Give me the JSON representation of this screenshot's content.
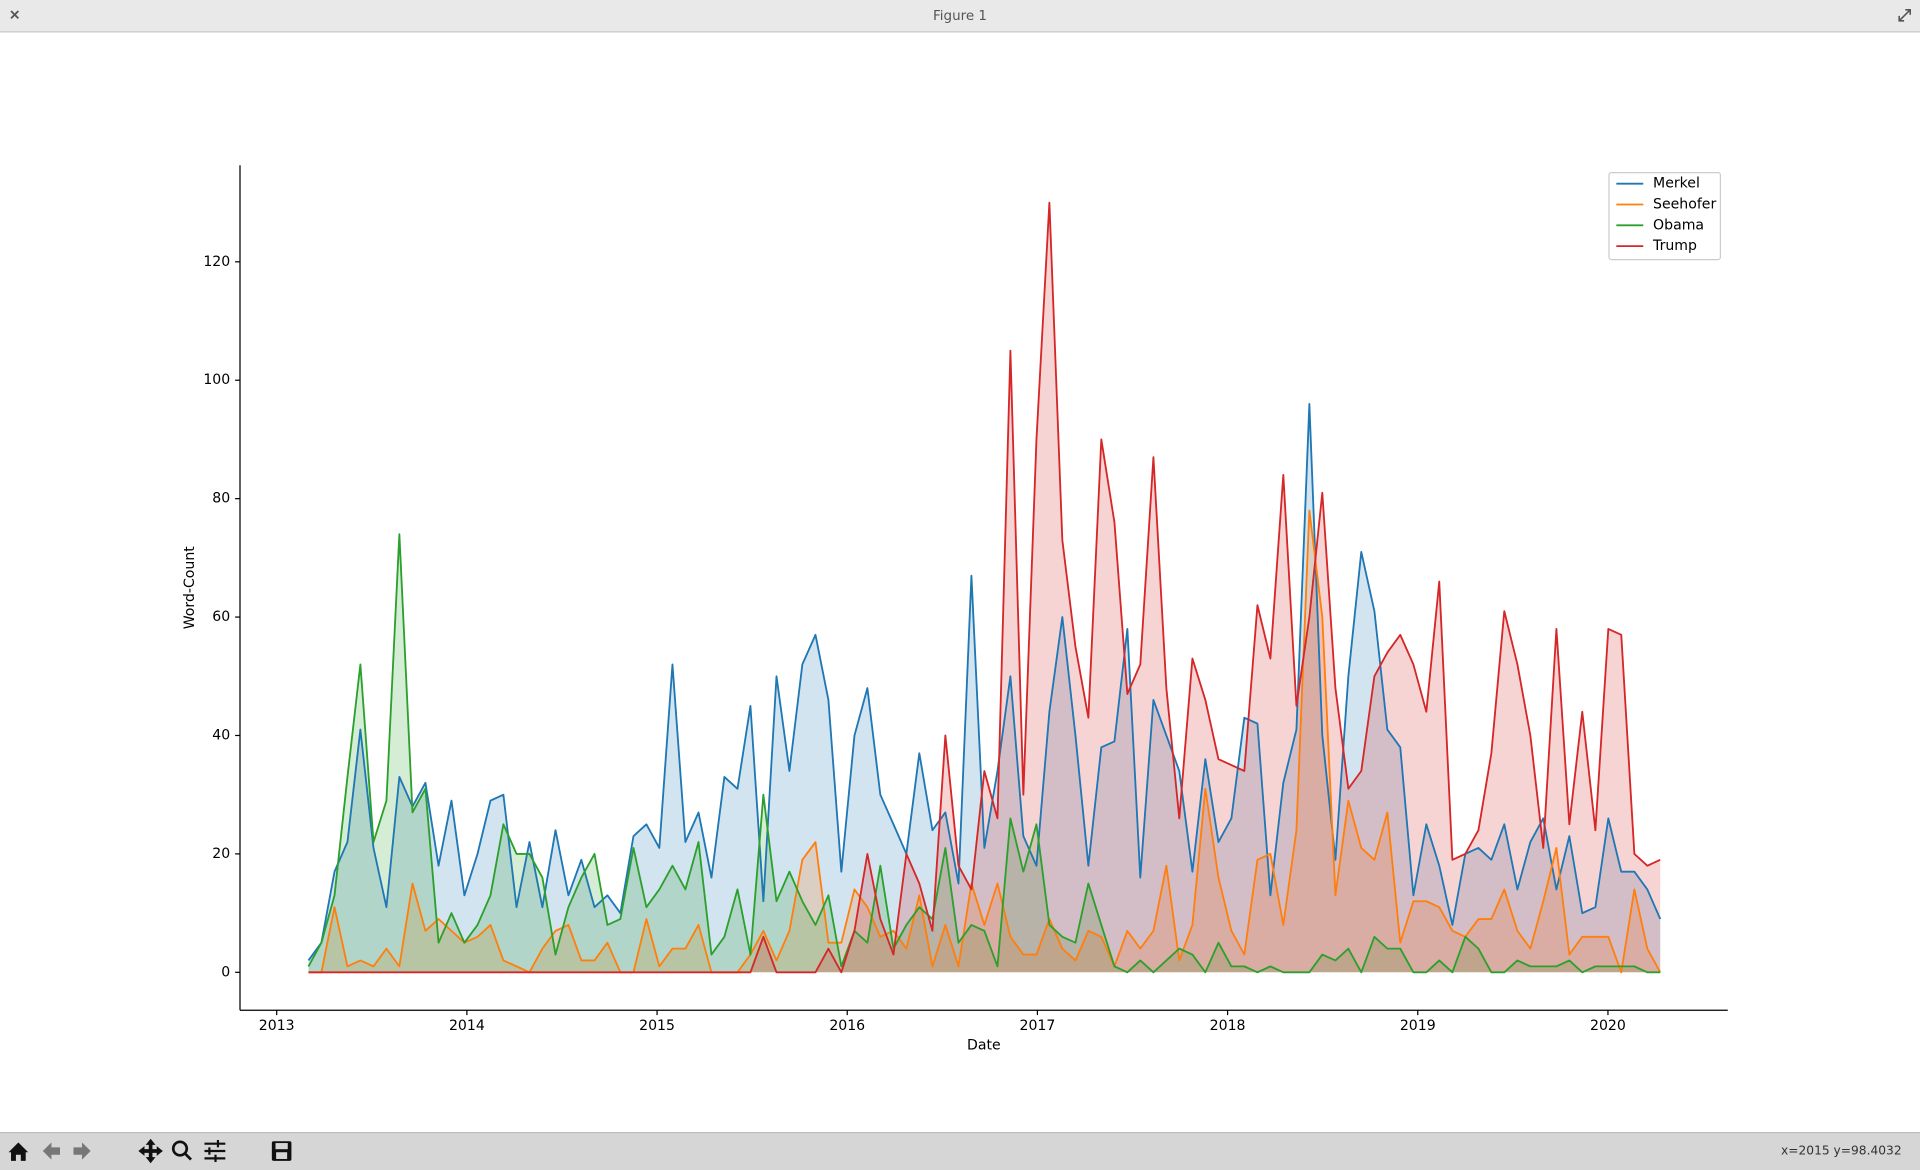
{
  "window": {
    "title": "Figure 1",
    "status": "x=2015 y=98.4032"
  },
  "chart_data": {
    "type": "area",
    "xlabel": "Date",
    "ylabel": "Word-Count",
    "xlim": [
      2012.807,
      2020.63
    ],
    "ylim": [
      -6.4,
      136.3
    ],
    "xticks": [
      2013,
      2014,
      2015,
      2016,
      2017,
      2018,
      2019,
      2020
    ],
    "yticks": [
      0,
      20,
      40,
      60,
      80,
      100,
      120
    ],
    "legend": "upper right",
    "fill_alpha": 0.2,
    "x": [
      2013.167,
      2013.235,
      2013.304,
      2013.372,
      2013.44,
      2013.509,
      2013.577,
      2013.645,
      2013.714,
      2013.782,
      2013.851,
      2013.919,
      2013.987,
      2014.056,
      2014.124,
      2014.192,
      2014.261,
      2014.329,
      2014.397,
      2014.466,
      2014.534,
      2014.602,
      2014.671,
      2014.739,
      2014.807,
      2014.876,
      2014.944,
      2015.012,
      2015.081,
      2015.149,
      2015.218,
      2015.286,
      2015.354,
      2015.423,
      2015.491,
      2015.559,
      2015.628,
      2015.696,
      2015.764,
      2015.833,
      2015.901,
      2015.969,
      2016.038,
      2016.106,
      2016.174,
      2016.243,
      2016.311,
      2016.379,
      2016.448,
      2016.516,
      2016.585,
      2016.653,
      2016.721,
      2016.79,
      2016.858,
      2016.926,
      2016.995,
      2017.063,
      2017.131,
      2017.2,
      2017.268,
      2017.336,
      2017.405,
      2017.473,
      2017.541,
      2017.61,
      2017.678,
      2017.746,
      2017.815,
      2017.883,
      2017.952,
      2018.02,
      2018.088,
      2018.157,
      2018.225,
      2018.293,
      2018.362,
      2018.43,
      2018.498,
      2018.567,
      2018.635,
      2018.703,
      2018.772,
      2018.84,
      2018.908,
      2018.977,
      2019.045,
      2019.113,
      2019.182,
      2019.25,
      2019.319,
      2019.387,
      2019.455,
      2019.524,
      2019.592,
      2019.66,
      2019.729,
      2019.797,
      2019.865,
      2019.934,
      2020.002,
      2020.07,
      2020.139,
      2020.207,
      2020.275
    ],
    "series": [
      {
        "name": "Merkel",
        "color": "#1f77b4",
        "values": [
          2,
          5,
          17,
          22,
          41,
          21,
          11,
          33,
          28,
          32,
          18,
          29,
          13,
          20,
          29,
          30,
          11,
          22,
          11,
          24,
          13,
          19,
          11,
          13,
          10,
          23,
          25,
          21,
          52,
          22,
          27,
          16,
          33,
          31,
          45,
          12,
          50,
          34,
          52,
          57,
          46,
          17,
          40,
          48,
          30,
          25,
          20,
          37,
          24,
          27,
          15,
          67,
          21,
          34,
          50,
          23,
          18,
          44,
          60,
          40,
          18,
          38,
          39,
          58,
          16,
          46,
          40,
          34,
          17,
          36,
          22,
          26,
          43,
          42,
          13,
          32,
          41,
          96,
          40,
          19,
          50,
          71,
          61,
          41,
          38,
          13,
          25,
          18,
          8,
          20,
          21,
          19,
          25,
          14,
          22,
          26,
          14,
          23,
          10,
          11,
          26,
          17,
          17,
          14,
          9
        ]
      },
      {
        "name": "Seehofer",
        "color": "#ff7f0e",
        "values": [
          0,
          0,
          11,
          1,
          2,
          1,
          4,
          1,
          15,
          7,
          9,
          7,
          5,
          6,
          8,
          2,
          1,
          0,
          4,
          7,
          8,
          2,
          2,
          5,
          0,
          0,
          9,
          1,
          4,
          4,
          8,
          0,
          0,
          0,
          3,
          7,
          2,
          7,
          19,
          22,
          5,
          5,
          14,
          11,
          6,
          7,
          4,
          13,
          1,
          8,
          1,
          15,
          8,
          15,
          6,
          3,
          3,
          9,
          4,
          2,
          7,
          6,
          1,
          7,
          4,
          7,
          18,
          2,
          8,
          31,
          16,
          7,
          3,
          19,
          20,
          8,
          24,
          78,
          60,
          13,
          29,
          21,
          19,
          27,
          5,
          12,
          12,
          11,
          7,
          6,
          9,
          9,
          14,
          7,
          4,
          12,
          21,
          3,
          6,
          6,
          6,
          0,
          14,
          4,
          0
        ]
      },
      {
        "name": "Obama",
        "color": "#2ca02c",
        "values": [
          1,
          5,
          13,
          33,
          52,
          22,
          29,
          74,
          27,
          31,
          5,
          10,
          5,
          8,
          13,
          25,
          20,
          20,
          16,
          3,
          11,
          16,
          20,
          8,
          9,
          21,
          11,
          14,
          18,
          14,
          22,
          3,
          6,
          14,
          3,
          30,
          12,
          17,
          12,
          8,
          13,
          1,
          7,
          5,
          18,
          4,
          8,
          11,
          9,
          21,
          5,
          8,
          7,
          1,
          26,
          17,
          25,
          8,
          6,
          5,
          15,
          8,
          1,
          0,
          2,
          0,
          2,
          4,
          3,
          0,
          5,
          1,
          1,
          0,
          1,
          0,
          0,
          0,
          3,
          2,
          4,
          0,
          6,
          4,
          4,
          0,
          0,
          2,
          0,
          6,
          4,
          0,
          0,
          2,
          1,
          1,
          1,
          2,
          0,
          1,
          1,
          1,
          1,
          0,
          0
        ]
      },
      {
        "name": "Trump",
        "color": "#d62728",
        "values": [
          0,
          0,
          0,
          0,
          0,
          0,
          0,
          0,
          0,
          0,
          0,
          0,
          0,
          0,
          0,
          0,
          0,
          0,
          0,
          0,
          0,
          0,
          0,
          0,
          0,
          0,
          0,
          0,
          0,
          0,
          0,
          0,
          0,
          0,
          0,
          6,
          0,
          0,
          0,
          0,
          4,
          0,
          7,
          20,
          9,
          3,
          20,
          15,
          7,
          40,
          18,
          14,
          34,
          26,
          105,
          30,
          90,
          130,
          73,
          55,
          43,
          90,
          76,
          47,
          52,
          87,
          48,
          26,
          53,
          46,
          36,
          35,
          34,
          62,
          53,
          84,
          45,
          60,
          81,
          48,
          31,
          34,
          50,
          54,
          57,
          52,
          44,
          66,
          19,
          20,
          24,
          37,
          61,
          52,
          40,
          21,
          58,
          25,
          44,
          24,
          58,
          57,
          20,
          18,
          19
        ]
      }
    ]
  }
}
